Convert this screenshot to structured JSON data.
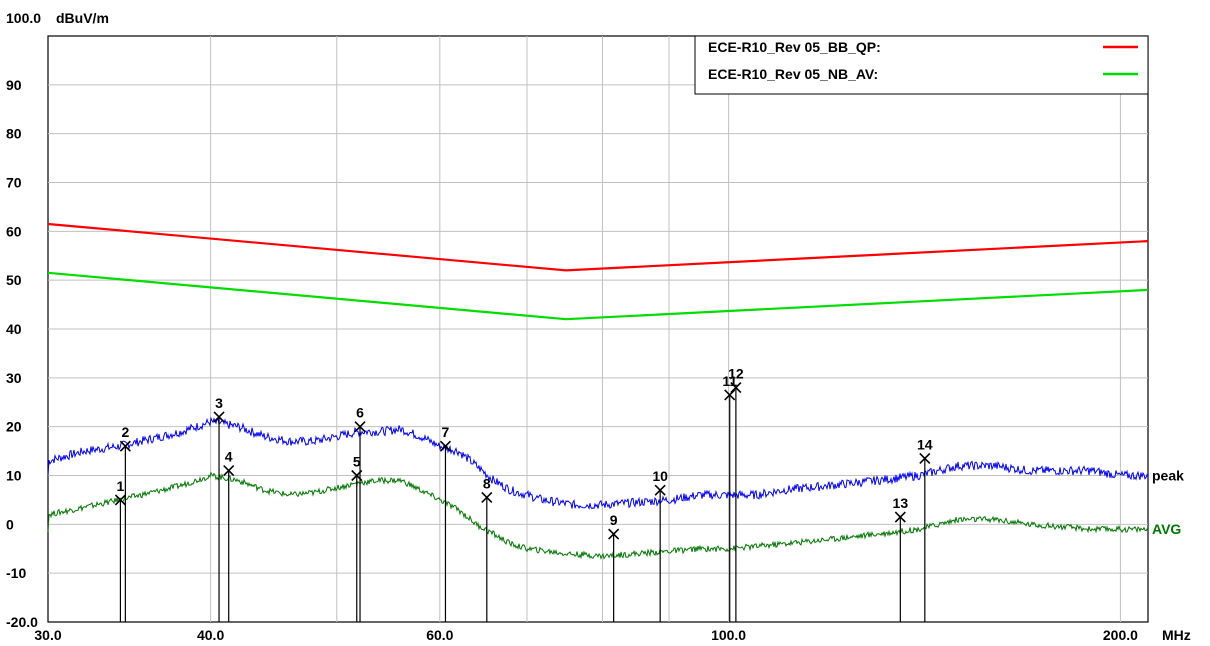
{
  "chart_data": {
    "type": "line",
    "y_unit": "dBuV/m",
    "x_unit": "MHz",
    "x_scale": "log",
    "xlim": [
      30,
      210
    ],
    "ylim": [
      -20,
      100
    ],
    "grid": true,
    "legend_position": "top-right",
    "y_ticks": [
      "100.0",
      "90",
      "80",
      "70",
      "60",
      "50",
      "40",
      "30",
      "20",
      "10",
      "0",
      "-10",
      "-20.0"
    ],
    "x_ticks": [
      {
        "value": 30,
        "label": "30.0"
      },
      {
        "value": 40,
        "label": "40.0"
      },
      {
        "value": 60,
        "label": "60.0"
      },
      {
        "value": 100,
        "label": "100.0"
      },
      {
        "value": 200,
        "label": "200.0"
      }
    ],
    "limit_lines": [
      {
        "name": "ECE-R10_Rev 05_BB_QP:",
        "color": "#ff0000",
        "points": [
          [
            30,
            61.5
          ],
          [
            75,
            52
          ],
          [
            210,
            58
          ]
        ]
      },
      {
        "name": "ECE-R10_Rev 05_NB_AV:",
        "color": "#00dd00",
        "points": [
          [
            30,
            51.5
          ],
          [
            75,
            42
          ],
          [
            210,
            48
          ]
        ]
      }
    ],
    "series": [
      {
        "name": "peak",
        "color": "#0000ff",
        "label_color": "#000000",
        "points": [
          [
            30,
            13
          ],
          [
            32,
            15
          ],
          [
            34,
            16
          ],
          [
            36,
            17.5
          ],
          [
            38,
            19
          ],
          [
            40,
            21
          ],
          [
            42,
            20
          ],
          [
            44,
            18
          ],
          [
            46,
            17
          ],
          [
            48,
            17
          ],
          [
            50,
            18
          ],
          [
            52,
            19
          ],
          [
            54,
            19
          ],
          [
            56,
            19.5
          ],
          [
            58,
            18
          ],
          [
            60,
            16
          ],
          [
            62,
            15
          ],
          [
            64,
            12
          ],
          [
            66,
            9
          ],
          [
            68,
            7
          ],
          [
            70,
            6
          ],
          [
            72,
            5
          ],
          [
            76,
            4
          ],
          [
            80,
            4
          ],
          [
            85,
            4.5
          ],
          [
            90,
            5
          ],
          [
            95,
            6
          ],
          [
            100,
            6
          ],
          [
            105,
            6
          ],
          [
            110,
            7
          ],
          [
            120,
            8
          ],
          [
            130,
            9
          ],
          [
            140,
            10
          ],
          [
            150,
            12
          ],
          [
            160,
            12
          ],
          [
            170,
            11
          ],
          [
            180,
            11
          ],
          [
            190,
            11
          ],
          [
            200,
            10
          ],
          [
            210,
            10
          ]
        ]
      },
      {
        "name": "AVG",
        "color": "#007700",
        "label_color": "#007700",
        "points": [
          [
            30,
            2
          ],
          [
            32,
            3.5
          ],
          [
            34,
            5
          ],
          [
            36,
            6.5
          ],
          [
            38,
            8
          ],
          [
            40,
            10
          ],
          [
            42,
            9
          ],
          [
            44,
            7
          ],
          [
            46,
            6
          ],
          [
            48,
            6.5
          ],
          [
            50,
            7.5
          ],
          [
            52,
            8.5
          ],
          [
            54,
            9
          ],
          [
            56,
            9
          ],
          [
            58,
            7
          ],
          [
            60,
            5
          ],
          [
            62,
            3
          ],
          [
            64,
            0
          ],
          [
            66,
            -2
          ],
          [
            68,
            -4
          ],
          [
            70,
            -5
          ],
          [
            75,
            -6
          ],
          [
            80,
            -6.5
          ],
          [
            85,
            -6
          ],
          [
            90,
            -5.5
          ],
          [
            95,
            -5
          ],
          [
            100,
            -5
          ],
          [
            105,
            -4.5
          ],
          [
            110,
            -4
          ],
          [
            120,
            -3
          ],
          [
            130,
            -2
          ],
          [
            140,
            -1
          ],
          [
            150,
            1
          ],
          [
            160,
            1
          ],
          [
            170,
            0
          ],
          [
            180,
            -0.5
          ],
          [
            190,
            -1
          ],
          [
            200,
            -1
          ],
          [
            210,
            -1
          ]
        ]
      }
    ],
    "markers": [
      {
        "id": "1",
        "x": 34.1,
        "y": 5
      },
      {
        "id": "2",
        "x": 34.4,
        "y": 16
      },
      {
        "id": "3",
        "x": 40.6,
        "y": 22
      },
      {
        "id": "4",
        "x": 41.3,
        "y": 11
      },
      {
        "id": "5",
        "x": 51.8,
        "y": 10
      },
      {
        "id": "6",
        "x": 52.1,
        "y": 20
      },
      {
        "id": "7",
        "x": 60.6,
        "y": 16
      },
      {
        "id": "8",
        "x": 65.2,
        "y": 5.5
      },
      {
        "id": "9",
        "x": 81.6,
        "y": -2
      },
      {
        "id": "10",
        "x": 88.6,
        "y": 7
      },
      {
        "id": "11",
        "x": 100.2,
        "y": 26.5
      },
      {
        "id": "12",
        "x": 101.3,
        "y": 28
      },
      {
        "id": "13",
        "x": 135.5,
        "y": 1.5
      },
      {
        "id": "14",
        "x": 141.5,
        "y": 13.5
      }
    ]
  }
}
